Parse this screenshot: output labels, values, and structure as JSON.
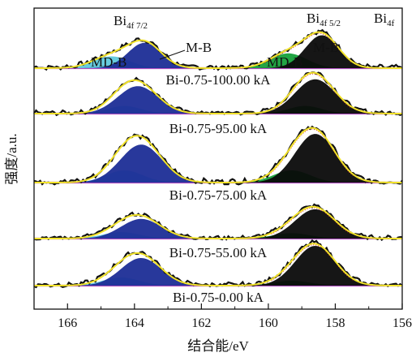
{
  "chart_data": {
    "type": "area",
    "xlabel": "结合能/eV",
    "ylabel": "强度/a.u.",
    "xlim": [
      167,
      156
    ],
    "xticks": [
      166,
      164,
      162,
      160,
      158,
      156
    ],
    "x_reversed": true,
    "y_ticks_shown": false,
    "grid": false,
    "stacked_offset": true,
    "colors": {
      "raw_data": "#111111",
      "fit_envelope": "#f2e32a",
      "background": "#b050c0",
      "MD-B": "#5ec8dc",
      "M-B": "#1c2d96",
      "M-B_5/2": "#0a0a0a",
      "MD-B_5/2": "#16a03a",
      "residual": "#e03030"
    },
    "panels": [
      {
        "label": "Bi-0.75-100.00 kA",
        "peaks": [
          {
            "name": "MD-B",
            "center": 164.7,
            "sigma": 0.55,
            "amp": 0.28,
            "color_key": "MD-B"
          },
          {
            "name": "M-B",
            "center": 163.7,
            "sigma": 0.5,
            "amp": 0.6,
            "color_key": "M-B"
          },
          {
            "name": "MD-B",
            "center": 159.4,
            "sigma": 0.55,
            "amp": 0.35,
            "color_key": "MD-B_5/2"
          },
          {
            "name": "M-B",
            "center": 158.4,
            "sigma": 0.5,
            "amp": 0.78,
            "color_key": "M-B_5/2"
          }
        ]
      },
      {
        "label": "Bi-0.75-95.00 kA",
        "peaks": [
          {
            "name": "MD-B",
            "center": 164.3,
            "sigma": 0.5,
            "amp": 0.2,
            "color_key": "MD-B"
          },
          {
            "name": "M-B",
            "center": 163.9,
            "sigma": 0.6,
            "amp": 0.72,
            "color_key": "M-B"
          },
          {
            "name": "MD-B",
            "center": 158.9,
            "sigma": 0.5,
            "amp": 0.2,
            "color_key": "MD-B_5/2"
          },
          {
            "name": "M-B",
            "center": 158.6,
            "sigma": 0.6,
            "amp": 0.9,
            "color_key": "M-B_5/2"
          }
        ]
      },
      {
        "label": "Bi-0.75-75.00 kA",
        "peaks": [
          {
            "name": "MD-B",
            "center": 164.3,
            "sigma": 0.55,
            "amp": 0.25,
            "color_key": "MD-B"
          },
          {
            "name": "M-B",
            "center": 163.8,
            "sigma": 0.62,
            "amp": 0.78,
            "color_key": "M-B"
          },
          {
            "name": "MD-B",
            "center": 159.3,
            "sigma": 0.55,
            "amp": 0.25,
            "color_key": "MD-B_5/2"
          },
          {
            "name": "M-B",
            "center": 158.6,
            "sigma": 0.6,
            "amp": 1.0,
            "color_key": "M-B_5/2"
          }
        ]
      },
      {
        "label": "Bi-0.75-55.00 kA",
        "peaks": [
          {
            "name": "MD-B",
            "center": 164.4,
            "sigma": 0.55,
            "amp": 0.18,
            "color_key": "MD-B"
          },
          {
            "name": "M-B",
            "center": 163.8,
            "sigma": 0.6,
            "amp": 0.55,
            "color_key": "M-B"
          },
          {
            "name": "MD-B",
            "center": 159.3,
            "sigma": 0.55,
            "amp": 0.15,
            "color_key": "MD-B_5/2"
          },
          {
            "name": "M-B",
            "center": 158.6,
            "sigma": 0.6,
            "amp": 0.82,
            "color_key": "M-B_5/2"
          }
        ]
      },
      {
        "label": "Bi-0.75-0.00 kA",
        "peaks": [
          {
            "name": "MD-B",
            "center": 164.4,
            "sigma": 0.55,
            "amp": 0.2,
            "color_key": "MD-B"
          },
          {
            "name": "M-B",
            "center": 163.8,
            "sigma": 0.6,
            "amp": 0.68,
            "color_key": "M-B"
          },
          {
            "name": "MD-B",
            "center": 159.3,
            "sigma": 0.55,
            "amp": 0.12,
            "color_key": "MD-B_5/2"
          },
          {
            "name": "M-B",
            "center": 158.6,
            "sigma": 0.6,
            "amp": 0.98,
            "color_key": "M-B_5/2"
          }
        ]
      }
    ],
    "annotations": {
      "bi_4f72": {
        "main": "Bi",
        "sub": "4f 7/2"
      },
      "bi_4f52": {
        "main": "Bi",
        "sub": "4f 5/2"
      },
      "bi_4f": {
        "main": "Bi",
        "sub": "4f"
      },
      "mdb_left": "MD-B",
      "mb_left": "M-B",
      "mdb_right": "MD-B",
      "mb_right": "M-B"
    }
  }
}
